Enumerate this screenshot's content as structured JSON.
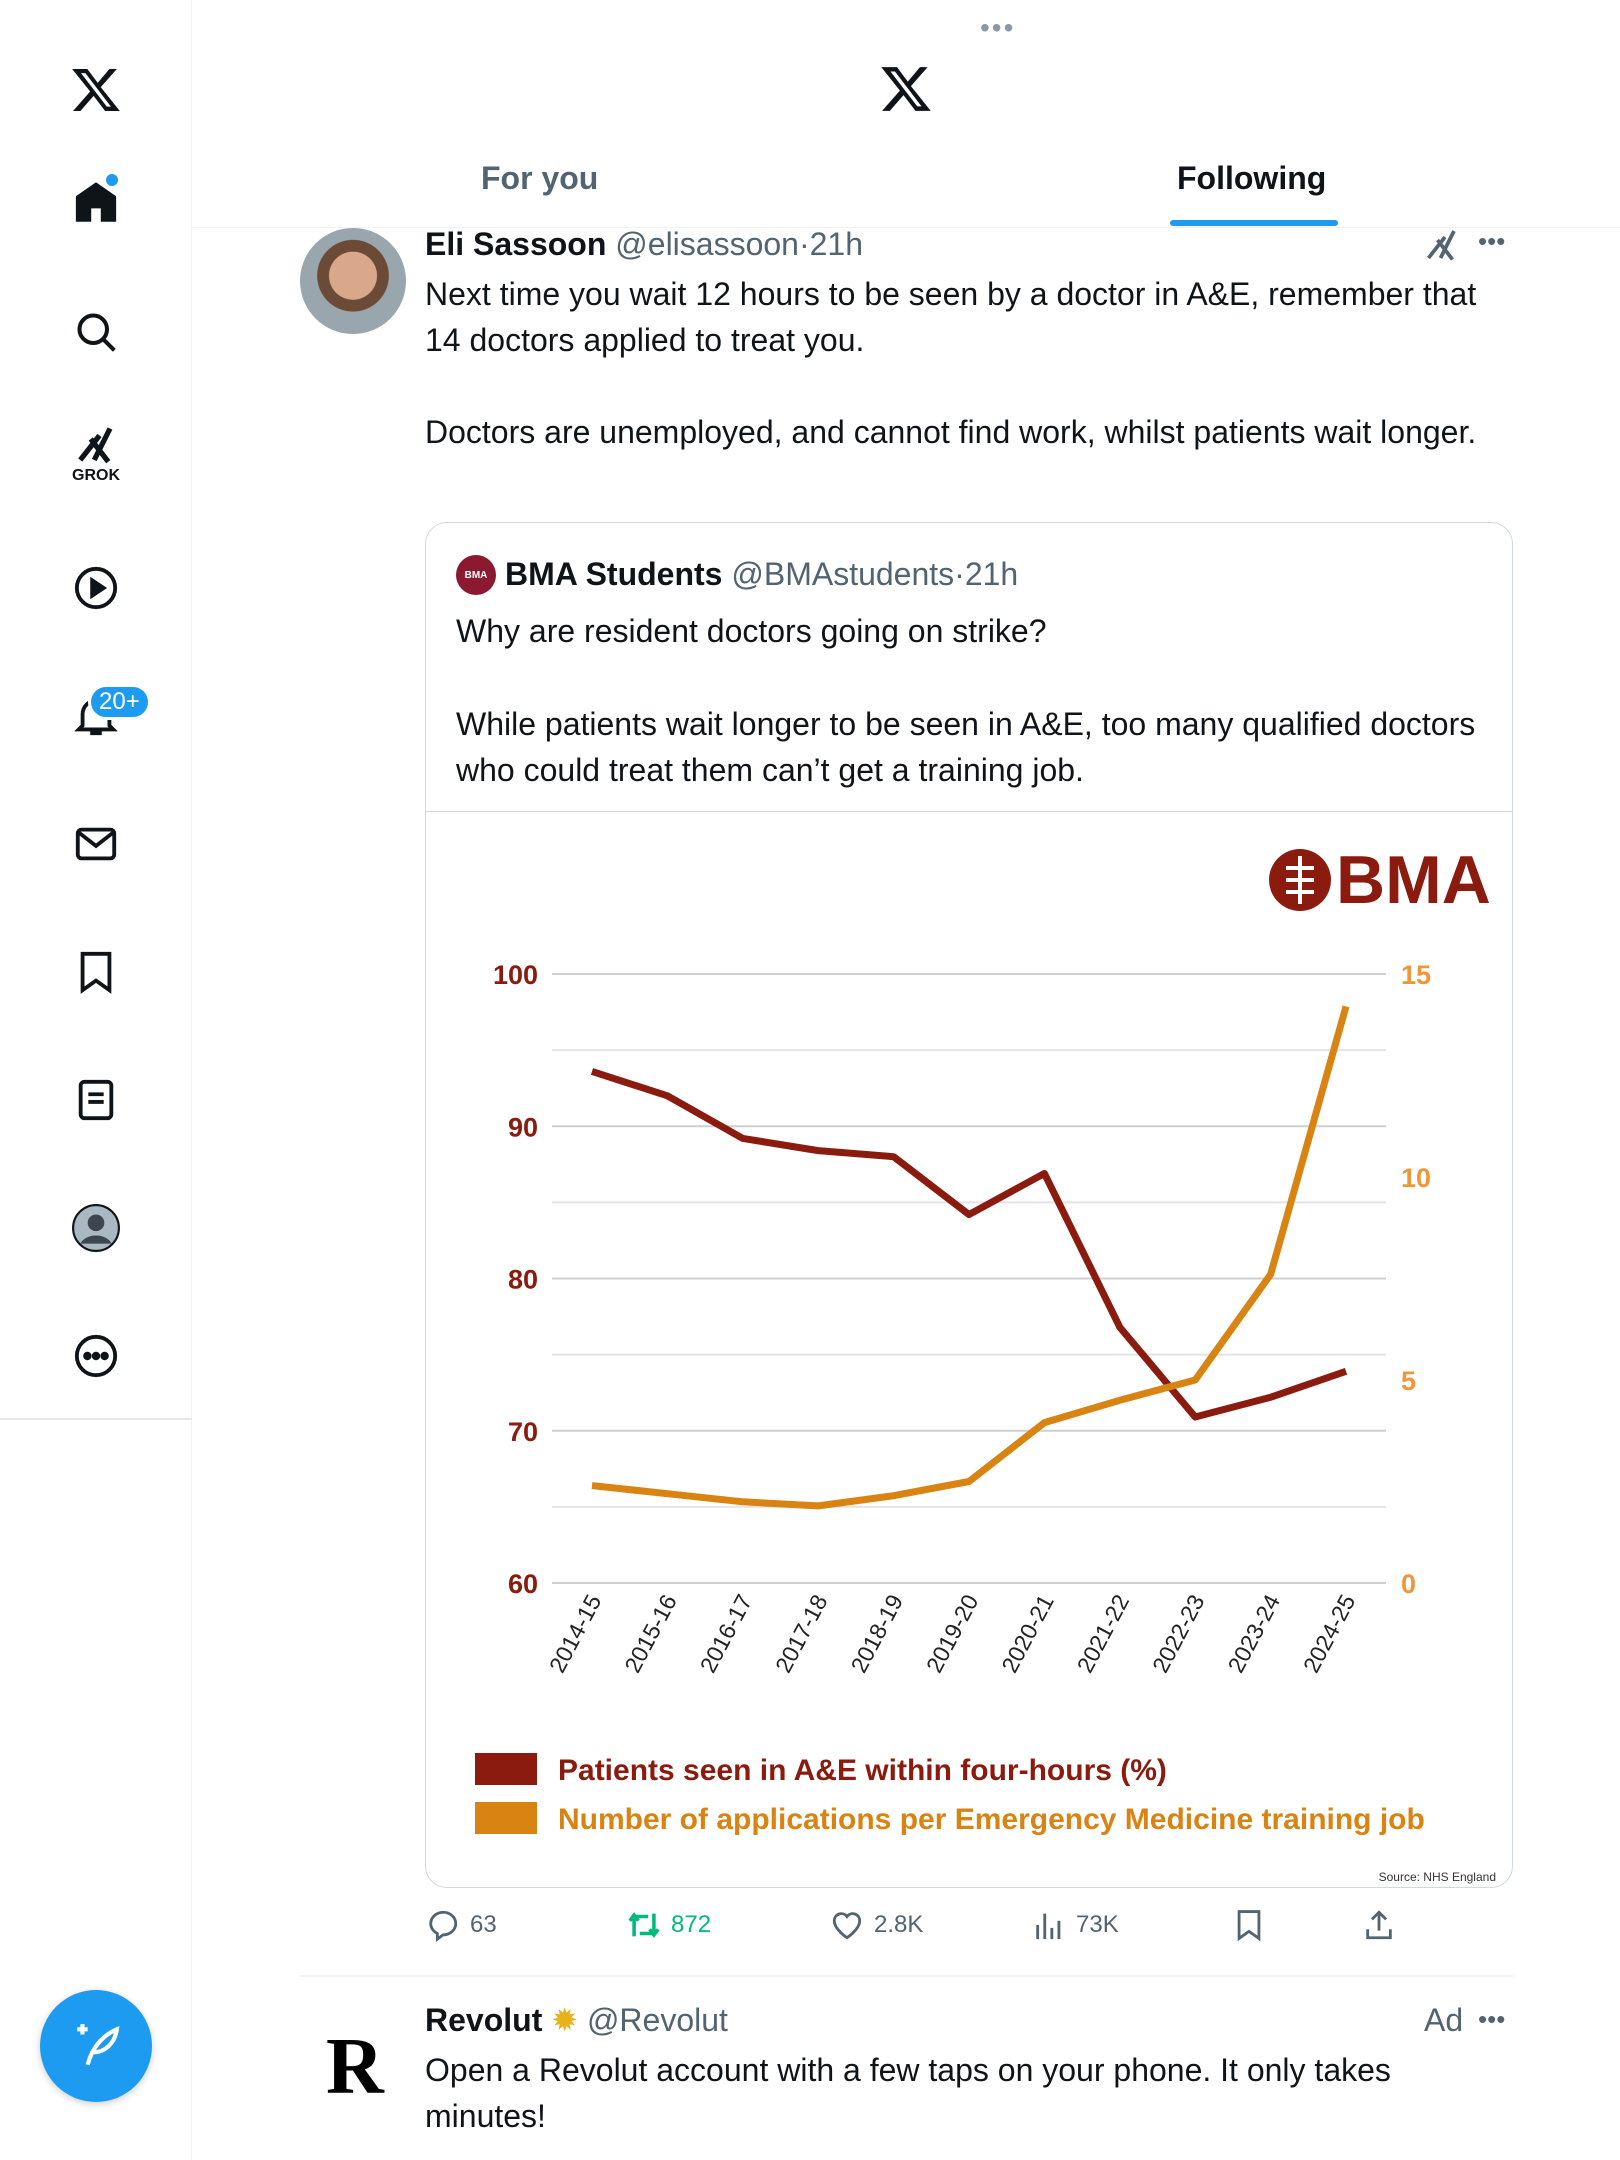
{
  "sidebar": {
    "items": [
      {
        "name": "x-logo"
      },
      {
        "name": "home"
      },
      {
        "name": "search"
      },
      {
        "name": "grok",
        "label": "GROK"
      },
      {
        "name": "video"
      },
      {
        "name": "notifications",
        "badge": "20+"
      },
      {
        "name": "messages"
      },
      {
        "name": "bookmarks"
      },
      {
        "name": "lists"
      },
      {
        "name": "profile"
      },
      {
        "name": "more"
      }
    ]
  },
  "header": {
    "more": "•••",
    "tabs": [
      {
        "label": "For you"
      },
      {
        "label": "Following"
      }
    ],
    "active_tab": "Following"
  },
  "tweet": {
    "name": "Eli Sassoon",
    "handle": "@elisassoon",
    "sep": "·",
    "time": "21h",
    "text1": "Next time you wait 12 hours to be seen by a doctor in A&E, remember that 14 doctors applied to treat you.",
    "text2": "Doctors are unemployed, and cannot find work, whilst patients wait longer.",
    "quote": {
      "avatar_text": "BMA",
      "name": "BMA Students",
      "handle": "@BMAstudents",
      "time": "21h",
      "text1": "Why are resident doctors going on strike?",
      "text2": "While patients wait longer to be seen in A&E, too many qualified doctors who could treat them can’t get a training job."
    },
    "actions": {
      "replies": "63",
      "reposts": "872",
      "likes": "2.8K",
      "views": "73K"
    }
  },
  "ad": {
    "logo": "R",
    "name": "Revolut",
    "handle": "@Revolut",
    "label": "Ad",
    "text": "Open a Revolut account with a few taps on your phone. It only takes minutes!"
  },
  "colors": {
    "accent": "#1d9bf0",
    "red": "#8b1a0f",
    "orange": "#d98312",
    "repost": "#00ba7c"
  },
  "chart_data": {
    "type": "line",
    "logo": "BMA",
    "categories": [
      "2014-15",
      "2015-16",
      "2016-17",
      "2017-18",
      "2018-19",
      "2019-20",
      "2020-21",
      "2021-22",
      "2022-23",
      "2023-24",
      "2024-25"
    ],
    "series": [
      {
        "name": "Patients seen in A&E within four-hours (%)",
        "axis": "left",
        "values": [
          93.6,
          92.0,
          89.2,
          88.4,
          88.0,
          84.2,
          86.9,
          76.8,
          70.9,
          72.2,
          73.9
        ]
      },
      {
        "name": "Number of applications per Emergency Medicine training job",
        "axis": "right",
        "values": [
          2.4,
          2.2,
          2.0,
          1.9,
          2.15,
          2.5,
          3.95,
          4.5,
          5.0,
          7.6,
          14.2
        ]
      }
    ],
    "left_ticks": [
      "100",
      "90",
      "80",
      "70",
      "60"
    ],
    "ylim_left": [
      60,
      100
    ],
    "right_ticks": [
      "15",
      "10",
      "5",
      "0"
    ],
    "ylim_right": [
      0,
      15
    ],
    "source": "Source: NHS England",
    "grid": true,
    "legend": "bottom"
  }
}
